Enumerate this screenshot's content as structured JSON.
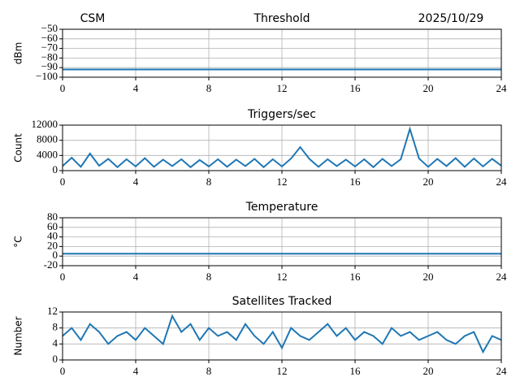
{
  "chart_data": [
    {
      "type": "line",
      "title": "Threshold",
      "title_left": "CSM",
      "title_right": "2025/10/29",
      "ylabel": "dBm",
      "color": "#1f77b4",
      "grid": true,
      "x": [
        0,
        0.5,
        1,
        1.5,
        2,
        2.5,
        3,
        3.5,
        4,
        4.5,
        5,
        5.5,
        6,
        6.5,
        7,
        7.5,
        8,
        8.5,
        9,
        9.5,
        10,
        10.5,
        11,
        11.5,
        12,
        12.5,
        13,
        13.5,
        14,
        14.5,
        15,
        15.5,
        16,
        16.5,
        17,
        17.5,
        18,
        18.5,
        19,
        19.5,
        20,
        20.5,
        21,
        21.5,
        22,
        22.5,
        23,
        23.5,
        24
      ],
      "values": [
        -92,
        -92,
        -92,
        -92,
        -92,
        -92,
        -92,
        -92,
        -92,
        -92,
        -92,
        -92,
        -92,
        -92,
        -92,
        -92,
        -92,
        -92,
        -92,
        -92,
        -92,
        -92,
        -92,
        -92,
        -92,
        -92,
        -92,
        -92,
        -92,
        -92,
        -92,
        -92,
        -92,
        -92,
        -92,
        -92,
        -92,
        -92,
        -92,
        -92,
        -92,
        -92,
        -92,
        -92,
        -92,
        -92,
        -92,
        -92,
        -92
      ],
      "xlim": [
        0,
        24
      ],
      "xticks": [
        0,
        4,
        8,
        12,
        16,
        20,
        24
      ],
      "ylim": [
        -100,
        -50
      ],
      "yticks": [
        {
          "value": -100,
          "label": "−100"
        },
        {
          "value": -90,
          "label": "−90"
        },
        {
          "value": -80,
          "label": "−80"
        },
        {
          "value": -70,
          "label": "−70"
        },
        {
          "value": -60,
          "label": "−60"
        },
        {
          "value": -50,
          "label": "−50"
        }
      ]
    },
    {
      "type": "line",
      "title": "Triggers/sec",
      "ylabel": "Count",
      "color": "#1f77b4",
      "grid": true,
      "x": [
        0,
        0.5,
        1,
        1.5,
        2,
        2.5,
        3,
        3.5,
        4,
        4.5,
        5,
        5.5,
        6,
        6.5,
        7,
        7.5,
        8,
        8.5,
        9,
        9.5,
        10,
        10.5,
        11,
        11.5,
        12,
        12.5,
        13,
        13.5,
        14,
        14.5,
        15,
        15.5,
        16,
        16.5,
        17,
        17.5,
        18,
        18.5,
        19,
        19.5,
        20,
        20.5,
        21,
        21.5,
        22,
        22.5,
        23,
        23.5,
        24
      ],
      "values": [
        1200,
        3400,
        1000,
        4500,
        1300,
        3100,
        900,
        3000,
        1100,
        3300,
        1000,
        2900,
        1200,
        3000,
        900,
        2800,
        1100,
        3000,
        1000,
        2900,
        1200,
        3100,
        900,
        3000,
        1100,
        3200,
        6200,
        3100,
        1000,
        3000,
        1200,
        2900,
        1100,
        3000,
        900,
        3100,
        1200,
        3000,
        11000,
        3200,
        1000,
        3100,
        1200,
        3300,
        1000,
        3200,
        1100,
        3100,
        1300
      ],
      "xlim": [
        0,
        24
      ],
      "xticks": [
        0,
        4,
        8,
        12,
        16,
        20,
        24
      ],
      "ylim": [
        0,
        12000
      ],
      "yticks": [
        0,
        4000,
        8000,
        12000
      ]
    },
    {
      "type": "line",
      "title": "Temperature",
      "ylabel": "°C",
      "color": "#1f77b4",
      "grid": true,
      "x": [
        0,
        0.5,
        1,
        1.5,
        2,
        2.5,
        3,
        3.5,
        4,
        4.5,
        5,
        5.5,
        6,
        6.5,
        7,
        7.5,
        8,
        8.5,
        9,
        9.5,
        10,
        10.5,
        11,
        11.5,
        12,
        12.5,
        13,
        13.5,
        14,
        14.5,
        15,
        15.5,
        16,
        16.5,
        17,
        17.5,
        18,
        18.5,
        19,
        19.5,
        20,
        20.5,
        21,
        21.5,
        22,
        22.5,
        23,
        23.5,
        24
      ],
      "values": [
        5,
        5,
        5,
        5,
        5,
        5,
        5,
        5,
        5,
        5,
        5,
        5,
        5,
        5,
        5,
        5,
        5,
        5,
        5,
        5,
        5,
        5,
        5,
        5,
        5,
        5,
        5,
        5,
        5,
        5,
        5,
        5,
        5,
        5,
        5,
        5,
        5,
        5,
        5,
        5,
        5,
        5,
        5,
        5,
        5,
        5,
        5,
        5,
        5
      ],
      "xlim": [
        0,
        24
      ],
      "xticks": [
        0,
        4,
        8,
        12,
        16,
        20,
        24
      ],
      "ylim": [
        -20,
        80
      ],
      "yticks": [
        -20,
        0,
        20,
        40,
        60,
        80
      ]
    },
    {
      "type": "line",
      "title": "Satellites Tracked",
      "ylabel": "Number",
      "color": "#1f77b4",
      "grid": true,
      "x": [
        0,
        0.5,
        1,
        1.5,
        2,
        2.5,
        3,
        3.5,
        4,
        4.5,
        5,
        5.5,
        6,
        6.5,
        7,
        7.5,
        8,
        8.5,
        9,
        9.5,
        10,
        10.5,
        11,
        11.5,
        12,
        12.5,
        13,
        13.5,
        14,
        14.5,
        15,
        15.5,
        16,
        16.5,
        17,
        17.5,
        18,
        18.5,
        19,
        19.5,
        20,
        20.5,
        21,
        21.5,
        22,
        22.5,
        23,
        23.5,
        24
      ],
      "values": [
        6,
        8,
        5,
        9,
        7,
        4,
        6,
        7,
        5,
        8,
        6,
        4,
        11,
        7,
        9,
        5,
        8,
        6,
        7,
        5,
        9,
        6,
        4,
        7,
        3,
        8,
        6,
        5,
        7,
        9,
        6,
        8,
        5,
        7,
        6,
        4,
        8,
        6,
        7,
        5,
        6,
        7,
        5,
        4,
        6,
        7,
        2,
        6,
        5
      ],
      "xlim": [
        0,
        24
      ],
      "xticks": [
        0,
        4,
        8,
        12,
        16,
        20,
        24
      ],
      "ylim": [
        0,
        12
      ],
      "yticks": [
        0,
        4,
        8,
        12
      ]
    }
  ]
}
